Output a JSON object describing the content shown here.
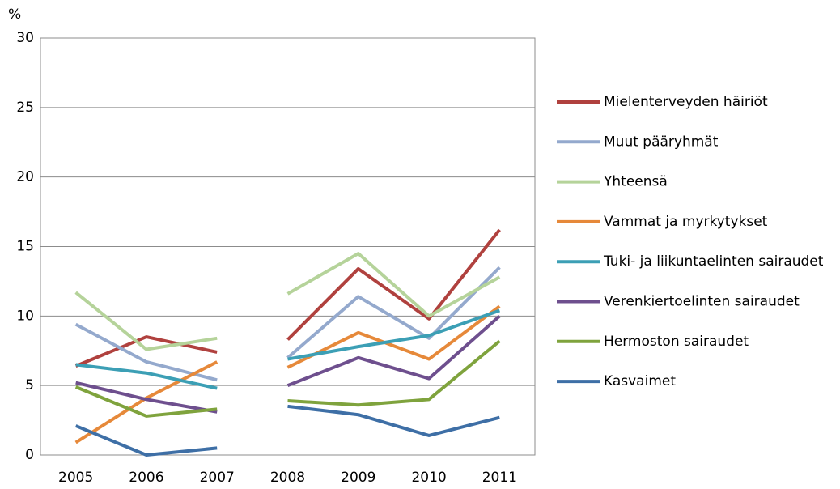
{
  "chart_data": {
    "type": "line",
    "y_unit": "%",
    "categories": [
      "2005",
      "2006",
      "2007",
      "2008",
      "2009",
      "2010",
      "2011"
    ],
    "line_breaks": [
      2
    ],
    "series": [
      {
        "name": "Mielenterveyden häiriöt",
        "color": "#b0413e",
        "values": [
          6.4,
          8.5,
          7.4,
          8.3,
          13.4,
          9.8,
          16.2
        ]
      },
      {
        "name": "Muut pääryhmät",
        "color": "#94a9cd",
        "values": [
          9.4,
          6.7,
          5.4,
          7.0,
          11.4,
          8.4,
          13.5
        ]
      },
      {
        "name": "Yhteensä",
        "color": "#b5d39a",
        "values": [
          11.7,
          7.6,
          8.4,
          11.6,
          14.5,
          10.0,
          12.8
        ]
      },
      {
        "name": "Vammat ja myrkytykset",
        "color": "#e6893a",
        "values": [
          0.9,
          4.1,
          6.7,
          6.3,
          8.8,
          6.9,
          10.7
        ]
      },
      {
        "name": "Tuki- ja liikuntaelinten sairaudet",
        "color": "#3c9fb5",
        "values": [
          6.5,
          5.9,
          4.8,
          6.9,
          7.8,
          8.6,
          10.4
        ]
      },
      {
        "name": "Verenkiertoelinten sairaudet",
        "color": "#6e4f8e",
        "values": [
          5.2,
          4.0,
          3.1,
          5.0,
          7.0,
          5.5,
          10.0
        ]
      },
      {
        "name": "Hermoston sairaudet",
        "color": "#7fa33d",
        "values": [
          4.9,
          2.8,
          3.3,
          3.9,
          3.6,
          4.0,
          8.2
        ]
      },
      {
        "name": "Kasvaimet",
        "color": "#3e6fa6",
        "values": [
          2.1,
          0.0,
          0.5,
          3.5,
          2.9,
          1.4,
          2.7
        ]
      }
    ],
    "ylim": [
      0,
      30
    ],
    "yticks": [
      0,
      5,
      10,
      15,
      20,
      25,
      30
    ],
    "grid": true,
    "legend": "right"
  }
}
